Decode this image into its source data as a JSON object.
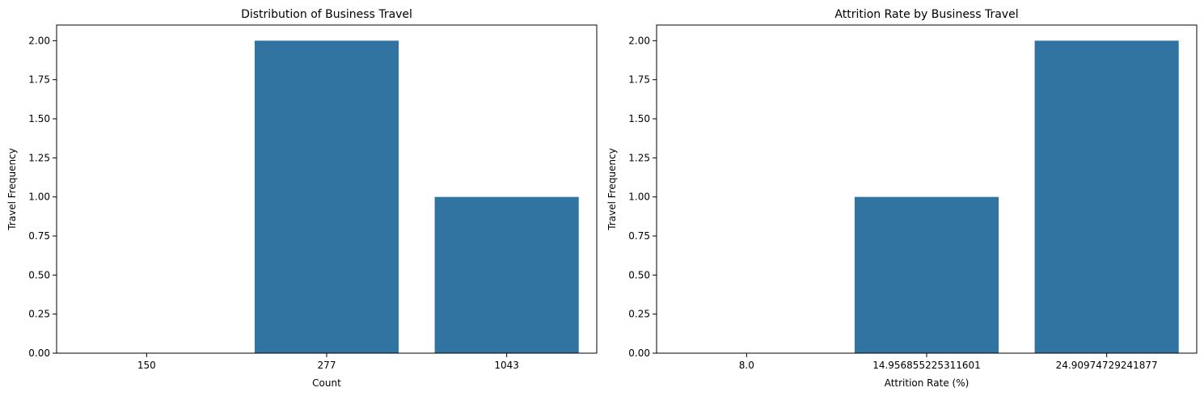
{
  "colors": {
    "bar": "#3274a1",
    "axis": "#000000",
    "background": "#ffffff"
  },
  "chart_data": [
    {
      "type": "bar",
      "title": "Distribution of Business Travel",
      "xlabel": "Count",
      "ylabel": "Travel Frequency",
      "categories": [
        "150",
        "277",
        "1043"
      ],
      "values": [
        0,
        2,
        1
      ],
      "ylim": [
        0,
        2.1
      ],
      "yticks": [
        "0.00",
        "0.25",
        "0.50",
        "0.75",
        "1.00",
        "1.25",
        "1.50",
        "1.75",
        "2.00"
      ],
      "grid": false,
      "legend": "none"
    },
    {
      "type": "bar",
      "title": "Attrition Rate by Business Travel",
      "xlabel": "Attrition Rate (%)",
      "ylabel": "Travel Frequency",
      "categories": [
        "8.0",
        "14.956855225311601",
        "24.90974729241877"
      ],
      "values": [
        0,
        1,
        2
      ],
      "ylim": [
        0,
        2.1
      ],
      "yticks": [
        "0.00",
        "0.25",
        "0.50",
        "0.75",
        "1.00",
        "1.25",
        "1.50",
        "1.75",
        "2.00"
      ],
      "grid": false,
      "legend": "none"
    }
  ]
}
